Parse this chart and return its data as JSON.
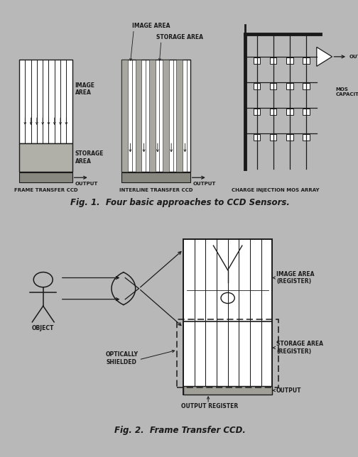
{
  "bg_color": "#b8b8b8",
  "panel_bg": "#dedad2",
  "panel_border": "#666666",
  "fig1_caption": "Fig. 1.  Four basic approaches to CCD Sensors.",
  "fig2_caption": "Fig. 2.  Frame Transfer CCD.",
  "label1": "FRAME TRANSFER CCD",
  "label2": "INTERLINE TRANSFER CCD",
  "label3": "CHARGE INJECTION MOS ARRAY",
  "fig1_labels": {
    "image_area1": "IMAGE\nAREA",
    "storage_area1": "STORAGE\nAREA",
    "output1": "OUTPUT",
    "image_area2": "IMAGE AREA",
    "storage_area2": "STORAGE AREA",
    "output2": "OUTPUT",
    "output3": "OUTPUT",
    "mos_cap": "MOS\nCAPACITORS"
  },
  "fig2_labels": {
    "object": "OBJECT",
    "optically_shielded": "OPTICALLY\nSHIELDED",
    "image_area": "IMAGE AREA\n(REGISTER)",
    "storage_area": "STORAGE AREA\n(REGISTER)",
    "output": "OUTPUT",
    "output_register": "OUTPUT REGISTER"
  },
  "line_color": "#1a1a1a",
  "text_color": "#1a1a1a"
}
